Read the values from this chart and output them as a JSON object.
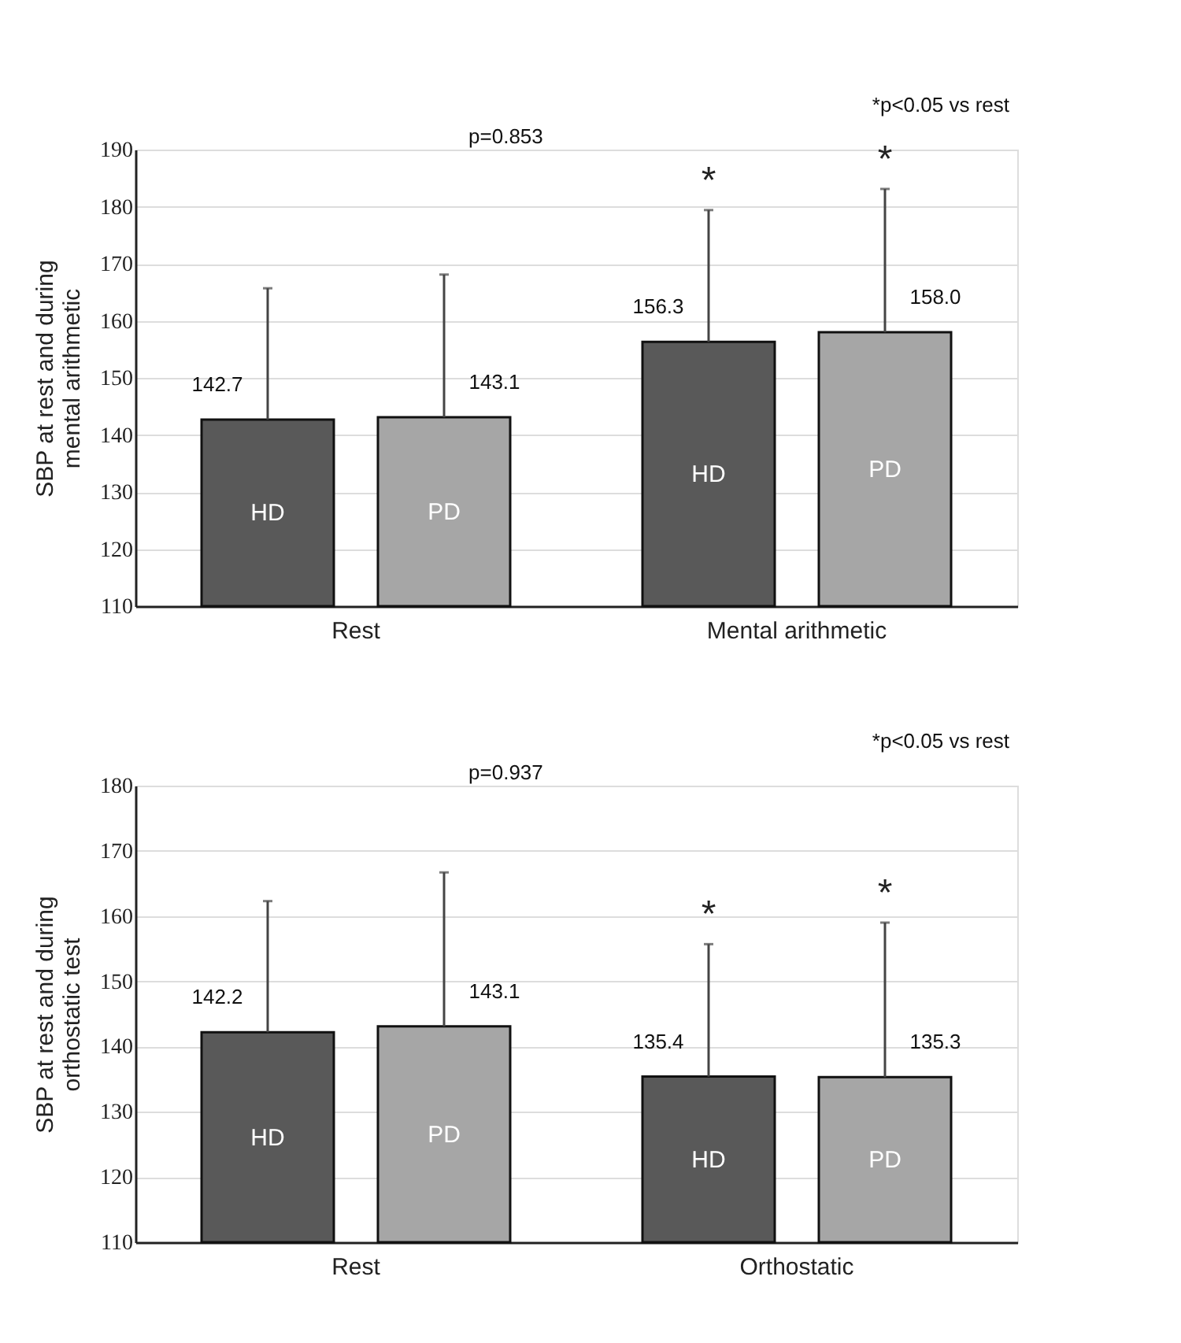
{
  "chart_data": [
    {
      "type": "bar",
      "ylabel": "SBP at rest and during mental arithmetic",
      "categories": [
        "Rest",
        "Mental arithmetic"
      ],
      "ylim": [
        110,
        190
      ],
      "yticks": [
        110,
        120,
        130,
        140,
        150,
        160,
        170,
        180,
        190
      ],
      "grid": "y",
      "data_labels": true,
      "series": [
        {
          "name": "HD",
          "color": "#595959",
          "values": [
            142.7,
            156.3
          ],
          "errors": [
            [
              142.7,
              165.7
            ],
            [
              156.3,
              179.4
            ]
          ]
        },
        {
          "name": "PD",
          "color": "#a6a6a6",
          "values": [
            143.1,
            158.0
          ],
          "value_labels": [
            "143.1",
            "158.0"
          ],
          "errors": [
            [
              143.1,
              168.1
            ],
            [
              158.0,
              183.1
            ]
          ]
        }
      ],
      "annotations": [
        "p=0.853",
        "*p<0.05 vs rest",
        "*",
        "*"
      ]
    },
    {
      "type": "bar",
      "ylabel": "SBP at rest and during orthostatic test",
      "categories": [
        "Rest",
        "Orthostatic"
      ],
      "ylim": [
        110,
        180
      ],
      "yticks": [
        110,
        120,
        130,
        140,
        150,
        160,
        170,
        180
      ],
      "grid": "y",
      "data_labels": true,
      "series": [
        {
          "name": "HD",
          "color": "#595959",
          "values": [
            142.2,
            135.4
          ],
          "errors": [
            [
              142.2,
              162.3
            ],
            [
              135.4,
              155.7
            ]
          ]
        },
        {
          "name": "PD",
          "color": "#a6a6a6",
          "values": [
            143.1,
            135.3
          ],
          "errors": [
            [
              143.1,
              166.7
            ],
            [
              135.3,
              159.0
            ]
          ]
        }
      ],
      "annotations": [
        "p=0.937",
        "*p<0.05 vs rest",
        "*",
        "*"
      ]
    }
  ]
}
